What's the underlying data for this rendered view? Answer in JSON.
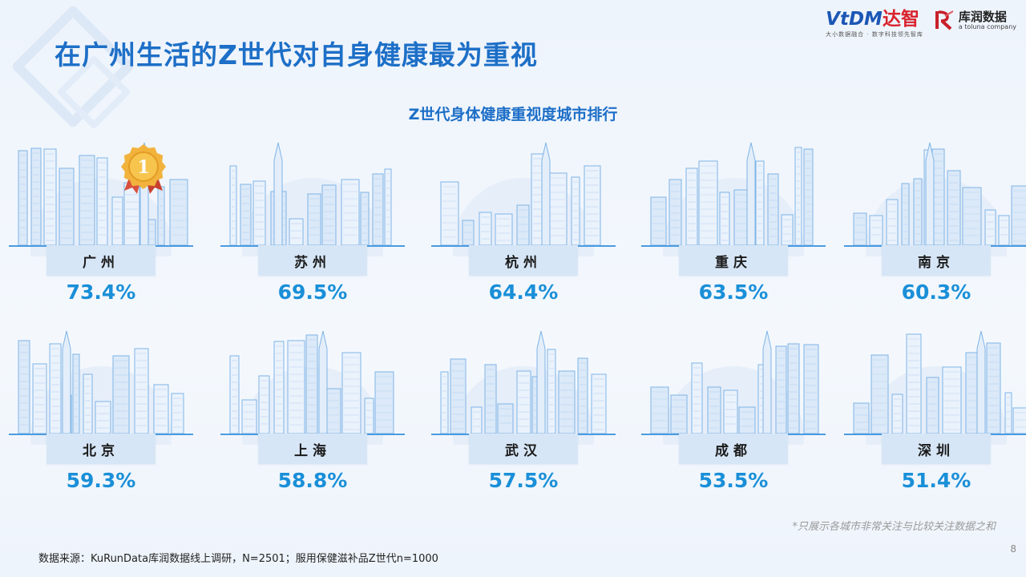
{
  "header": {
    "title": "在广州生活的Z世代对自身健康最为重视",
    "logo_vtdm": "VtDM",
    "logo_vtdm_cn": "达智",
    "logo_vtdm_sub": "大小数据融合 · 数字科技领先智库",
    "logo_k": "库润数据",
    "logo_k_sub": "a toluna company"
  },
  "chart_data": {
    "type": "table",
    "title": "Z世代身体健康重视度城市排行",
    "categories": [
      "广州",
      "苏州",
      "杭州",
      "重庆",
      "南京",
      "北京",
      "上海",
      "武汉",
      "成都",
      "深圳"
    ],
    "values": [
      73.4,
      69.5,
      64.4,
      63.5,
      60.3,
      59.3,
      58.8,
      57.5,
      53.5,
      51.4
    ],
    "value_labels": [
      "73.4%",
      "69.5%",
      "64.4%",
      "63.5%",
      "60.3%",
      "59.3%",
      "58.8%",
      "57.5%",
      "53.5%",
      "51.4%"
    ],
    "unit": "%",
    "rank_badge": "1"
  },
  "footer": {
    "note": "*只展示各城市非常关注与比较关注数据之和",
    "source": "数据来源：KuRunData库润数据线上调研，N=2501；服用保健滋补品Z世代n=1000",
    "page": "8"
  },
  "colors": {
    "title": "#1d6fc7",
    "value": "#1a8fd8",
    "label_bg": "#d7e6f6",
    "skyline": "#7fb4e6"
  }
}
